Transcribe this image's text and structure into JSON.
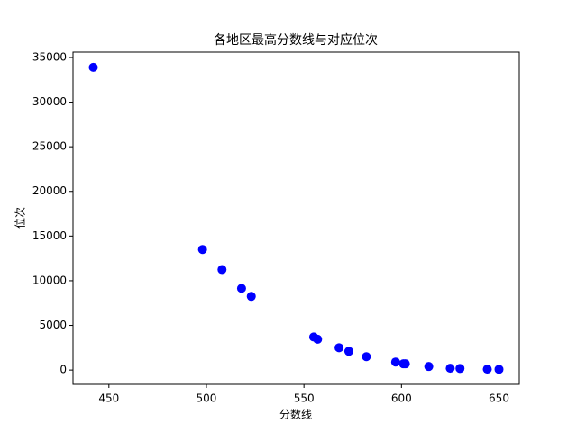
{
  "chart_data": {
    "type": "scatter",
    "title": "各地区最高分数线与对应位次",
    "x_label": "分数线",
    "y_label": "位次",
    "color": "#0000ff",
    "x": [
      442,
      498,
      508,
      518,
      523,
      555,
      557,
      568,
      573,
      582,
      597,
      601,
      602,
      614,
      625,
      630,
      644,
      650
    ],
    "values": [
      33900,
      13500,
      11250,
      9150,
      8250,
      3700,
      3450,
      2500,
      2100,
      1500,
      900,
      700,
      700,
      400,
      200,
      180,
      100,
      80
    ],
    "xlim": [
      431.6,
      660.4
    ],
    "ylim": [
      -1600,
      35600
    ],
    "xticks": [
      450,
      500,
      550,
      600,
      650
    ],
    "yticks": [
      0,
      5000,
      10000,
      15000,
      20000,
      25000,
      30000,
      35000
    ],
    "grid": false
  }
}
